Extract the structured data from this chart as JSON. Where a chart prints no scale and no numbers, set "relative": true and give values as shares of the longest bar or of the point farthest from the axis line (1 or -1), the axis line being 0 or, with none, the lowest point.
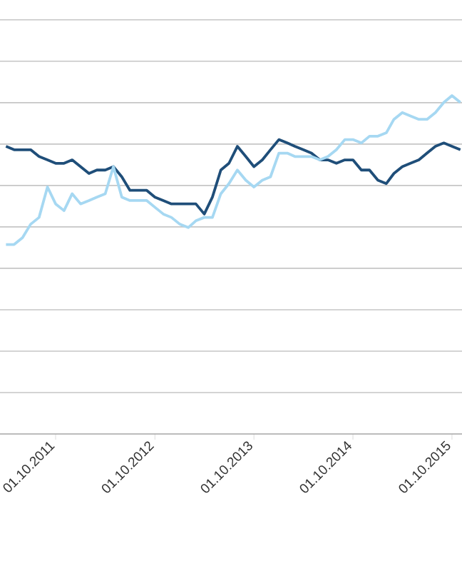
{
  "chart_data": {
    "type": "line",
    "relative": true,
    "grid": "y",
    "x": [
      "2011-04-01",
      "2011-05-01",
      "2011-06-01",
      "2011-07-01",
      "2011-08-01",
      "2011-09-01",
      "2011-10-01",
      "2011-11-01",
      "2011-12-01",
      "2012-01-01",
      "2012-02-01",
      "2012-03-01",
      "2012-04-01",
      "2012-05-01",
      "2012-06-01",
      "2012-07-01",
      "2012-08-01",
      "2012-09-01",
      "2012-10-01",
      "2012-11-01",
      "2012-12-01",
      "2013-01-01",
      "2013-02-01",
      "2013-03-01",
      "2013-04-01",
      "2013-05-01",
      "2013-06-01",
      "2013-07-01",
      "2013-08-01",
      "2013-09-01",
      "2013-10-01",
      "2013-11-01",
      "2013-12-01",
      "2014-01-01",
      "2014-02-01",
      "2014-03-01",
      "2014-04-01",
      "2014-05-01",
      "2014-06-01",
      "2014-07-01",
      "2014-08-01",
      "2014-09-01",
      "2014-10-01",
      "2014-11-01",
      "2014-12-01",
      "2015-01-01",
      "2015-02-01",
      "2015-03-01",
      "2015-04-01",
      "2015-05-01",
      "2015-06-01",
      "2015-07-01",
      "2015-08-01",
      "2015-09-01",
      "2015-10-01",
      "2015-11-01"
    ],
    "xlim": [
      "2011-03-10",
      "2015-11-07"
    ],
    "xticks": [
      {
        "value": "2011-10-01",
        "label": "01.10.2011"
      },
      {
        "value": "2012-10-01",
        "label": "01.10.2012"
      },
      {
        "value": "2013-10-01",
        "label": "01.10.2013"
      },
      {
        "value": "2014-10-01",
        "label": "01.10.2014"
      },
      {
        "value": "2015-10-01",
        "label": "01.10.2015"
      }
    ],
    "series": [
      {
        "color": "#1f4e79",
        "values": [
          0.85,
          0.84,
          0.84,
          0.84,
          0.82,
          0.81,
          0.8,
          0.8,
          0.81,
          0.79,
          0.77,
          0.78,
          0.78,
          0.79,
          0.76,
          0.72,
          0.72,
          0.72,
          0.7,
          0.69,
          0.68,
          0.68,
          0.68,
          0.68,
          0.65,
          0.7,
          0.78,
          0.8,
          0.85,
          0.82,
          0.79,
          0.81,
          0.84,
          0.87,
          0.86,
          0.85,
          0.84,
          0.83,
          0.81,
          0.81,
          0.8,
          0.81,
          0.81,
          0.78,
          0.78,
          0.75,
          0.74,
          0.77,
          0.79,
          0.8,
          0.81,
          0.83,
          0.85,
          0.86,
          0.85,
          0.84
        ]
      },
      {
        "color": "#a6d8f2",
        "values": [
          0.56,
          0.56,
          0.58,
          0.62,
          0.64,
          0.73,
          0.68,
          0.66,
          0.71,
          0.68,
          0.69,
          0.7,
          0.71,
          0.79,
          0.7,
          0.69,
          0.69,
          0.69,
          0.67,
          0.65,
          0.64,
          0.62,
          0.61,
          0.63,
          0.64,
          0.64,
          0.71,
          0.74,
          0.78,
          0.75,
          0.73,
          0.75,
          0.76,
          0.83,
          0.83,
          0.82,
          0.82,
          0.82,
          0.81,
          0.82,
          0.84,
          0.87,
          0.87,
          0.86,
          0.88,
          0.88,
          0.89,
          0.93,
          0.95,
          0.94,
          0.93,
          0.93,
          0.95,
          0.98,
          1.0,
          0.98
        ]
      }
    ]
  }
}
